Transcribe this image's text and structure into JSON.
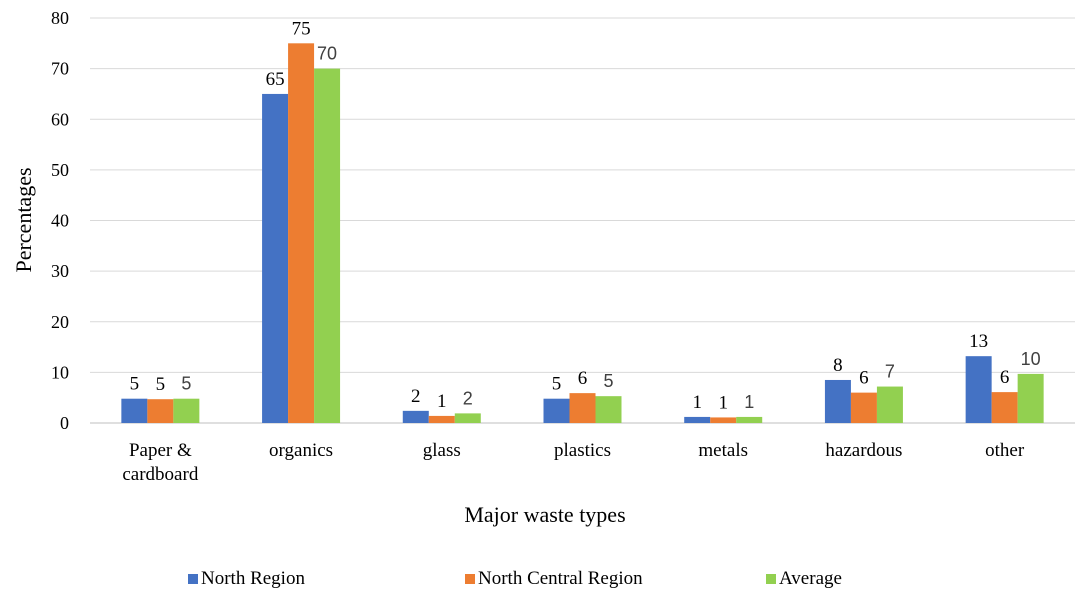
{
  "chart_data": {
    "type": "bar",
    "title": "",
    "xlabel": "Major waste types",
    "ylabel": "Percentages",
    "ylim": [
      0,
      80
    ],
    "yticks": [
      0,
      10,
      20,
      30,
      40,
      50,
      60,
      70,
      80
    ],
    "grid": true,
    "legend_position": "bottom",
    "categories": [
      [
        "Paper &",
        "cardboard"
      ],
      [
        "organics"
      ],
      [
        "glass"
      ],
      [
        "plastics"
      ],
      [
        "metals"
      ],
      [
        "hazardous"
      ],
      [
        "other"
      ]
    ],
    "series": [
      {
        "name": "North Region",
        "color": "#4472C4",
        "values": [
          4.8,
          65,
          2.4,
          4.8,
          1.2,
          8.5,
          13.2
        ],
        "labels": [
          "5",
          "65",
          "2",
          "5",
          "1",
          "8",
          "13"
        ]
      },
      {
        "name": "North Central Region",
        "color": "#ED7D31",
        "values": [
          4.7,
          75,
          1.4,
          5.9,
          1.1,
          6.0,
          6.1
        ],
        "labels": [
          "5",
          "75",
          "1",
          "6",
          "1",
          "6",
          "6"
        ]
      },
      {
        "name": "Average",
        "color": "#92D050",
        "values": [
          4.8,
          70,
          1.9,
          5.3,
          1.2,
          7.2,
          9.7
        ],
        "labels": [
          "5",
          "70",
          "2",
          "5",
          "1",
          "7",
          "10"
        ]
      }
    ]
  }
}
